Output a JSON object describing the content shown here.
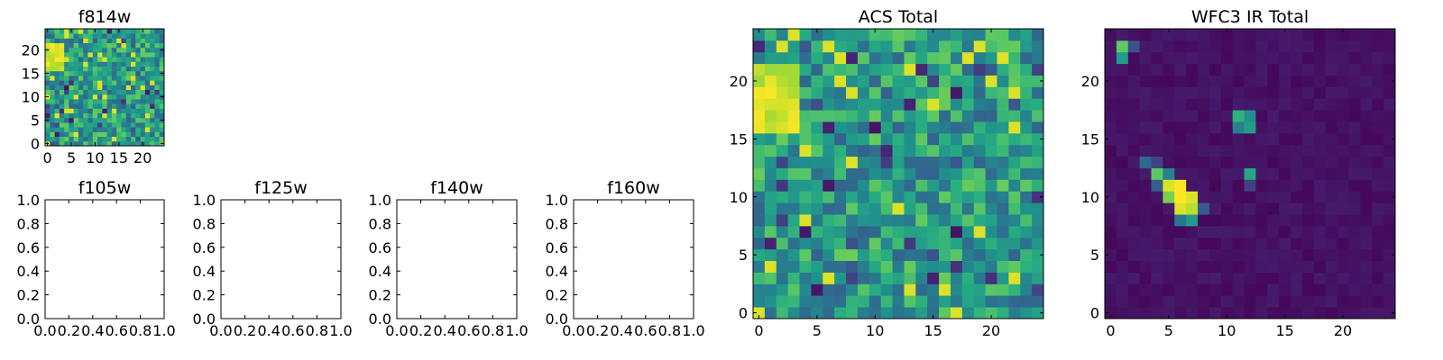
{
  "chart_data": [
    {
      "type": "heatmap",
      "title": "f814w",
      "xlim": [
        0,
        25
      ],
      "ylim": [
        0,
        25
      ],
      "xticks": [
        "0",
        "5",
        "10",
        "15",
        "20"
      ],
      "yticks": [
        "0",
        "5",
        "10",
        "15",
        "20"
      ],
      "colormap": "viridis",
      "grid_size": 25
    },
    {
      "type": "heatmap",
      "title": "f105w",
      "xlim": [
        0,
        1
      ],
      "ylim": [
        0,
        1
      ],
      "xticks": [
        "0.0",
        "0.2",
        "0.4",
        "0.6",
        "0.8",
        "1.0"
      ],
      "yticks": [
        "0.0",
        "0.2",
        "0.4",
        "0.6",
        "0.8",
        "1.0"
      ],
      "empty": true
    },
    {
      "type": "heatmap",
      "title": "f125w",
      "xlim": [
        0,
        1
      ],
      "ylim": [
        0,
        1
      ],
      "xticks": [
        "0.0",
        "0.2",
        "0.4",
        "0.6",
        "0.8",
        "1.0"
      ],
      "yticks": [
        "0.0",
        "0.2",
        "0.4",
        "0.6",
        "0.8",
        "1.0"
      ],
      "empty": true
    },
    {
      "type": "heatmap",
      "title": "f140w",
      "xlim": [
        0,
        1
      ],
      "ylim": [
        0,
        1
      ],
      "xticks": [
        "0.0",
        "0.2",
        "0.4",
        "0.6",
        "0.8",
        "1.0"
      ],
      "yticks": [
        "0.0",
        "0.2",
        "0.4",
        "0.6",
        "0.8",
        "1.0"
      ],
      "empty": true
    },
    {
      "type": "heatmap",
      "title": "f160w",
      "xlim": [
        0,
        1
      ],
      "ylim": [
        0,
        1
      ],
      "xticks": [
        "0.0",
        "0.2",
        "0.4",
        "0.6",
        "0.8",
        "1.0"
      ],
      "yticks": [
        "0.0",
        "0.2",
        "0.4",
        "0.6",
        "0.8",
        "1.0"
      ],
      "empty": true
    },
    {
      "type": "heatmap",
      "title": "ACS Total",
      "xlim": [
        0,
        25
      ],
      "ylim": [
        0,
        25
      ],
      "xticks": [
        "0",
        "5",
        "10",
        "15",
        "20"
      ],
      "yticks": [
        "0",
        "5",
        "10",
        "15",
        "20"
      ],
      "colormap": "viridis",
      "grid_size": 25
    },
    {
      "type": "heatmap",
      "title": "WFC3 IR Total",
      "xlim": [
        0,
        25
      ],
      "ylim": [
        0,
        25
      ],
      "xticks": [
        "0",
        "5",
        "10",
        "15",
        "20"
      ],
      "yticks": [
        "0",
        "5",
        "10",
        "15",
        "20"
      ],
      "colormap": "viridis",
      "grid_size": 25,
      "bright_pixels": [
        {
          "x": 1,
          "y": 23,
          "v": 0.75
        },
        {
          "x": 1,
          "y": 22,
          "v": 0.55
        },
        {
          "x": 2,
          "y": 23,
          "v": 0.25
        },
        {
          "x": 11,
          "y": 17,
          "v": 0.65
        },
        {
          "x": 12,
          "y": 17,
          "v": 0.5
        },
        {
          "x": 11,
          "y": 16,
          "v": 0.45
        },
        {
          "x": 12,
          "y": 16,
          "v": 0.55
        },
        {
          "x": 12,
          "y": 12,
          "v": 0.6
        },
        {
          "x": 3,
          "y": 13,
          "v": 0.35
        },
        {
          "x": 4,
          "y": 12,
          "v": 0.75
        },
        {
          "x": 4,
          "y": 13,
          "v": 0.2
        },
        {
          "x": 5,
          "y": 12,
          "v": 0.45
        },
        {
          "x": 5,
          "y": 11,
          "v": 0.95
        },
        {
          "x": 6,
          "y": 11,
          "v": 1.0
        },
        {
          "x": 6,
          "y": 10,
          "v": 1.0
        },
        {
          "x": 7,
          "y": 10,
          "v": 0.95
        },
        {
          "x": 6,
          "y": 9,
          "v": 0.95
        },
        {
          "x": 7,
          "y": 9,
          "v": 0.9
        },
        {
          "x": 5,
          "y": 10,
          "v": 0.8
        },
        {
          "x": 6,
          "y": 8,
          "v": 0.4
        },
        {
          "x": 7,
          "y": 8,
          "v": 0.55
        },
        {
          "x": 8,
          "y": 9,
          "v": 0.3
        },
        {
          "x": 4,
          "y": 11,
          "v": 0.3
        },
        {
          "x": 12,
          "y": 11,
          "v": 0.2
        }
      ]
    }
  ]
}
